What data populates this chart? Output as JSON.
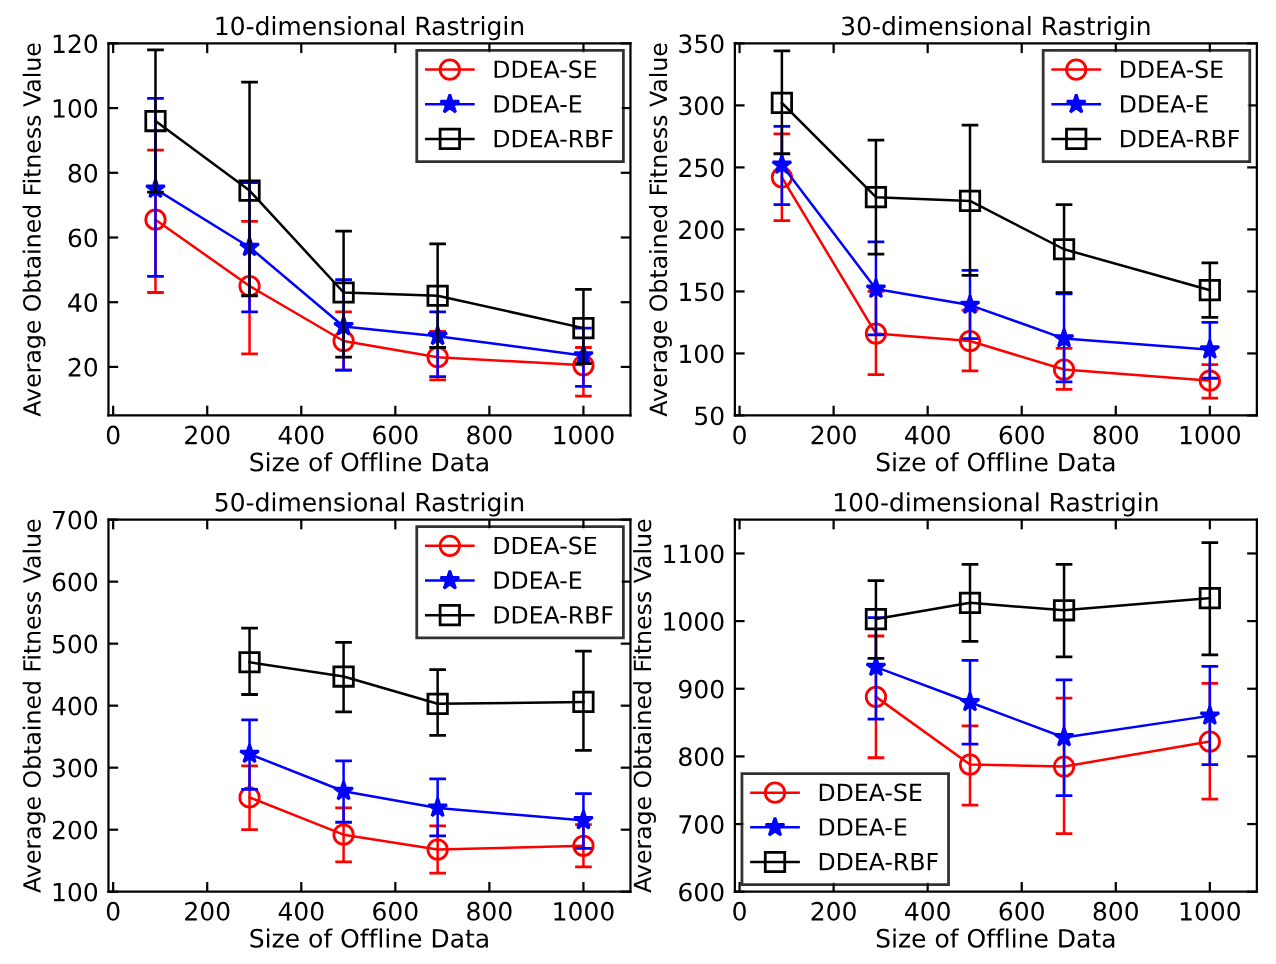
{
  "chart_data": [
    {
      "type": "line",
      "title": "10-dimensional Rastrigin",
      "xlabel": "Size of Offline Data",
      "ylabel": "Average Obtained Fitness Value",
      "x": [
        90,
        290,
        490,
        690,
        1000
      ],
      "xlim": [
        -10,
        1100
      ],
      "ylim": [
        5,
        120
      ],
      "xticks": [
        0,
        200,
        400,
        600,
        800,
        1000
      ],
      "yticks": [
        20,
        40,
        60,
        80,
        100,
        120
      ],
      "legend": "top right",
      "grid": false,
      "series": [
        {
          "name": "DDEA-SE",
          "color": "#ff0000",
          "marker": "circle",
          "values": [
            65.5,
            45,
            28,
            23,
            20.5
          ],
          "errors": [
            [
              43,
              87
            ],
            [
              24,
              65
            ],
            [
              19,
              37
            ],
            [
              16,
              31
            ],
            [
              11,
              26
            ]
          ]
        },
        {
          "name": "DDEA-E",
          "color": "#0000ff",
          "marker": "star",
          "values": [
            75,
            57,
            32.5,
            29.5,
            23.5
          ],
          "errors": [
            [
              48,
              103
            ],
            [
              37,
              77
            ],
            [
              19,
              47
            ],
            [
              17,
              37
            ],
            [
              14,
              32
            ]
          ]
        },
        {
          "name": "DDEA-RBF",
          "color": "#000000",
          "marker": "square",
          "values": [
            96,
            74.5,
            43,
            42,
            32
          ],
          "errors": [
            [
              74,
              118
            ],
            [
              42,
              108
            ],
            [
              23,
              62
            ],
            [
              26,
              58
            ],
            [
              21,
              44
            ]
          ]
        }
      ]
    },
    {
      "type": "line",
      "title": "30-dimensional Rastrigin",
      "xlabel": "Size of Offline Data",
      "ylabel": "Average Obtained Fitness Value",
      "x": [
        90,
        290,
        490,
        690,
        1000
      ],
      "xlim": [
        -10,
        1100
      ],
      "ylim": [
        50,
        350
      ],
      "xticks": [
        0,
        200,
        400,
        600,
        800,
        1000
      ],
      "yticks": [
        50,
        100,
        150,
        200,
        250,
        300,
        350
      ],
      "legend": "top right",
      "grid": false,
      "series": [
        {
          "name": "DDEA-SE",
          "color": "#ff0000",
          "marker": "circle",
          "values": [
            242,
            116,
            110,
            87,
            78
          ],
          "errors": [
            [
              207,
              277
            ],
            [
              83,
              150
            ],
            [
              86,
              135
            ],
            [
              71,
              104
            ],
            [
              64,
              91
            ]
          ]
        },
        {
          "name": "DDEA-E",
          "color": "#0000ff",
          "marker": "star",
          "values": [
            252,
            152,
            139,
            112,
            103
          ],
          "errors": [
            [
              220,
              283
            ],
            [
              115,
              190
            ],
            [
              112,
              167
            ],
            [
              77,
              148
            ],
            [
              80,
              125
            ]
          ]
        },
        {
          "name": "DDEA-RBF",
          "color": "#000000",
          "marker": "square",
          "values": [
            302,
            226,
            223,
            184,
            151
          ],
          "errors": [
            [
              261,
              344
            ],
            [
              180,
              272
            ],
            [
              163,
              284
            ],
            [
              149,
              220
            ],
            [
              129,
              173
            ]
          ]
        }
      ]
    },
    {
      "type": "line",
      "title": "50-dimensional Rastrigin",
      "xlabel": "Size of Offline Data",
      "ylabel": "Average Obtained Fitness Value",
      "x": [
        290,
        490,
        690,
        1000
      ],
      "xlim": [
        -10,
        1100
      ],
      "ylim": [
        100,
        700
      ],
      "xticks": [
        0,
        200,
        400,
        600,
        800,
        1000
      ],
      "yticks": [
        100,
        200,
        300,
        400,
        500,
        600,
        700
      ],
      "legend": "top right",
      "grid": false,
      "series": [
        {
          "name": "DDEA-SE",
          "color": "#ff0000",
          "marker": "circle",
          "values": [
            252,
            192,
            168,
            174
          ],
          "errors": [
            [
              200,
              303
            ],
            [
              148,
              235
            ],
            [
              130,
              206
            ],
            [
              140,
              208
            ]
          ]
        },
        {
          "name": "DDEA-E",
          "color": "#0000ff",
          "marker": "star",
          "values": [
            322,
            262,
            235,
            215
          ],
          "errors": [
            [
              265,
              377
            ],
            [
              212,
              311
            ],
            [
              190,
              282
            ],
            [
              170,
              258
            ]
          ]
        },
        {
          "name": "DDEA-RBF",
          "color": "#000000",
          "marker": "square",
          "values": [
            470,
            447,
            403,
            406
          ],
          "errors": [
            [
              418,
              525
            ],
            [
              390,
              502
            ],
            [
              352,
              458
            ],
            [
              328,
              488
            ]
          ]
        }
      ]
    },
    {
      "type": "line",
      "title": "100-dimensional Rastrigin",
      "xlabel": "Size of Offline Data",
      "ylabel": "Average Obtained Fitness Value",
      "x": [
        290,
        490,
        690,
        1000
      ],
      "xlim": [
        -10,
        1100
      ],
      "ylim": [
        600,
        1150
      ],
      "xticks": [
        0,
        200,
        400,
        600,
        800,
        1000
      ],
      "yticks": [
        600,
        700,
        800,
        900,
        1000,
        1100
      ],
      "legend": "bottom left",
      "grid": false,
      "series": [
        {
          "name": "DDEA-SE",
          "color": "#ff0000",
          "marker": "circle",
          "values": [
            888,
            788,
            785,
            822
          ],
          "errors": [
            [
              798,
              978
            ],
            [
              728,
              845
            ],
            [
              686,
              886
            ],
            [
              737,
              908
            ]
          ]
        },
        {
          "name": "DDEA-E",
          "color": "#0000ff",
          "marker": "star",
          "values": [
            932,
            880,
            828,
            860
          ],
          "errors": [
            [
              855,
              1005
            ],
            [
              818,
              942
            ],
            [
              742,
              913
            ],
            [
              788,
              933
            ]
          ]
        },
        {
          "name": "DDEA-RBF",
          "color": "#000000",
          "marker": "square",
          "values": [
            1003,
            1027,
            1016,
            1034
          ],
          "errors": [
            [
              945,
              1060
            ],
            [
              970,
              1084
            ],
            [
              947,
              1084
            ],
            [
              950,
              1116
            ]
          ]
        }
      ]
    }
  ]
}
